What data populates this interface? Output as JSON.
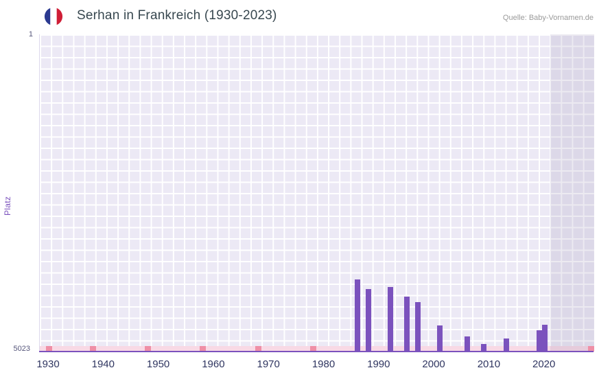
{
  "header": {
    "title": "Serhan in Frankreich (1930-2023)",
    "source": "Quelle: Baby-Vornamen.de"
  },
  "axes": {
    "y_label": "Platz",
    "y_top": "1",
    "y_bottom": "5023",
    "x_ticks": [
      "1930",
      "1940",
      "1950",
      "1960",
      "1970",
      "1980",
      "1990",
      "2000",
      "2010",
      "2020"
    ]
  },
  "chart_data": {
    "type": "bar",
    "title": "Serhan in Frankreich (1930-2023)",
    "ylabel": "Platz",
    "x_range": [
      1930,
      2023
    ],
    "y_axis": {
      "min": 1,
      "max": 5023,
      "inverted": true,
      "top_label": "1",
      "bottom_label": "5023"
    },
    "x_ticks": [
      1930,
      1940,
      1950,
      1960,
      1970,
      1980,
      1990,
      2000,
      2010,
      2020
    ],
    "series": [
      {
        "name": "Platz",
        "points": [
          {
            "year": 1986,
            "rank": 3914
          },
          {
            "year": 1988,
            "rank": 4066
          },
          {
            "year": 1992,
            "rank": 4033
          },
          {
            "year": 1995,
            "rank": 4186
          },
          {
            "year": 1997,
            "rank": 4273
          },
          {
            "year": 2001,
            "rank": 4653
          },
          {
            "year": 2006,
            "rank": 4827
          },
          {
            "year": 2009,
            "rank": 4947
          },
          {
            "year": 2013,
            "rank": 4860
          },
          {
            "year": 2019,
            "rank": 4730
          },
          {
            "year": 2020,
            "rank": 4642
          }
        ]
      }
    ],
    "baseline_markers_years": [
      1930,
      1938,
      1948,
      1958,
      1968,
      1978
    ],
    "band_edge_marker": true,
    "recent_band_start_year": 2021,
    "legend": false,
    "grid": true,
    "colors": {
      "bar": "#7b52bd",
      "plot_bg": "#ece9f5",
      "grid": "#ffffff",
      "band": "#f8d9e5",
      "band_marker": "#ef8fa6",
      "flag_blue": "#2b3990",
      "flag_red": "#cf1e36"
    }
  }
}
